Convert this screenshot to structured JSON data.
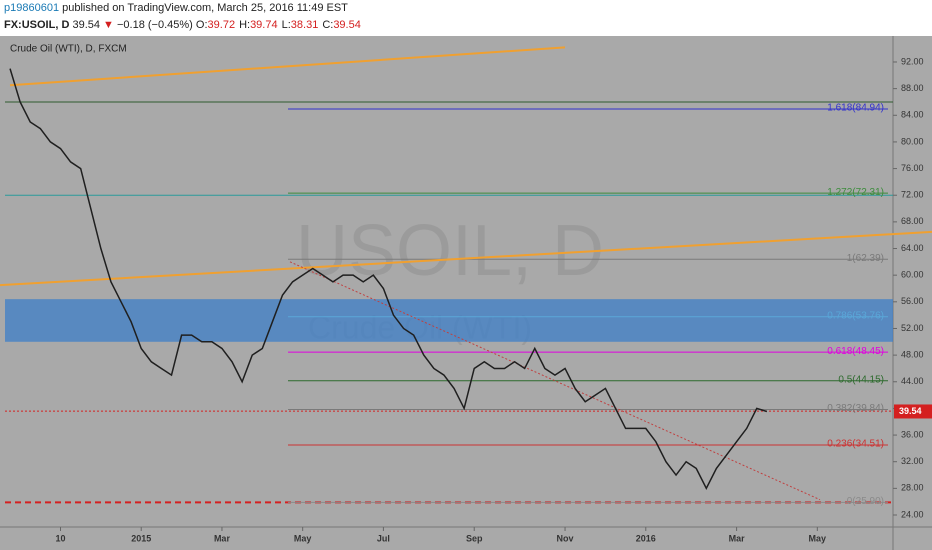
{
  "header": {
    "user": "p19860601",
    "published": "published on TradingView.com, March 25, 2016 11:49 EST",
    "symbol": "FX:USOIL, D",
    "price": "39.54",
    "change": "−0.18 (−0.45%)",
    "ohlc": [
      {
        "label": "O:",
        "value": "39.72"
      },
      {
        "label": "H:",
        "value": "39.74"
      },
      {
        "label": "L:",
        "value": "38.31"
      },
      {
        "label": "C:",
        "value": "39.54"
      }
    ]
  },
  "chart_data": {
    "type": "line",
    "title": "Crude Oil (WTI), D, FXCM",
    "watermark": "USOIL, D",
    "watermark_sub": "Crude Oil (WTI)",
    "color": "#1f1f1f",
    "categories": [
      null,
      null,
      null,
      null,
      null,
      "10",
      null,
      null,
      null,
      null,
      null,
      null,
      null,
      "2015",
      null,
      null,
      null,
      null,
      null,
      null,
      null,
      "Mar",
      null,
      null,
      null,
      null,
      null,
      null,
      null,
      "May",
      null,
      null,
      null,
      null,
      null,
      null,
      null,
      "Jul",
      null,
      null,
      null,
      null,
      null,
      null,
      null,
      null,
      "Sep",
      null,
      null,
      null,
      null,
      null,
      null,
      null,
      null,
      "Nov",
      null,
      null,
      null,
      null,
      null,
      null,
      null,
      "2016",
      null,
      null,
      null,
      null,
      null,
      null,
      null,
      null,
      "Mar",
      null,
      null,
      null,
      null,
      null,
      null,
      null,
      "May",
      null,
      null,
      null,
      null,
      null,
      null,
      null
    ],
    "values": [
      91,
      86,
      83,
      82,
      80,
      79,
      77,
      76,
      70,
      64,
      59,
      56,
      53,
      49,
      47,
      46,
      45,
      51,
      51,
      50,
      50,
      49,
      47,
      44,
      48,
      49,
      53,
      57,
      59,
      60,
      61,
      60,
      59,
      60,
      60,
      59,
      60,
      58,
      54,
      52,
      51,
      48,
      46,
      45,
      43,
      40,
      46,
      47,
      46,
      46,
      47,
      46,
      49,
      46,
      45,
      46,
      43,
      41,
      42,
      43,
      40,
      37,
      37,
      37,
      35,
      32,
      30,
      32,
      31,
      28,
      31,
      33,
      35,
      37,
      40,
      39.54,
      null,
      null,
      null,
      null,
      null,
      null,
      null,
      null,
      null,
      null,
      null,
      null
    ],
    "ylim": [
      22.2,
      95.6
    ],
    "yticks": [
      {
        "value": 24,
        "label": "24.00"
      },
      {
        "value": 28,
        "label": "28.00"
      },
      {
        "value": 32,
        "label": "32.00"
      },
      {
        "value": 36,
        "label": "36.00"
      },
      {
        "value": 40,
        "label": "40.00"
      },
      {
        "value": 44,
        "label": "44.00"
      },
      {
        "value": 48,
        "label": "48.00"
      },
      {
        "value": 52,
        "label": "52.00"
      },
      {
        "value": 56,
        "label": "56.00"
      },
      {
        "value": 60,
        "label": "60.00"
      },
      {
        "value": 64,
        "label": "64.00"
      },
      {
        "value": 68,
        "label": "68.00"
      },
      {
        "value": 72,
        "label": "72.00"
      },
      {
        "value": 76,
        "label": "76.00"
      },
      {
        "value": 80,
        "label": "80.00"
      },
      {
        "value": 84,
        "label": "84.00"
      },
      {
        "value": 88,
        "label": "88.00"
      },
      {
        "value": 92,
        "label": "92.00"
      }
    ],
    "last_price": {
      "value": 39.54,
      "label": "39.54"
    },
    "fib_levels": [
      {
        "value": 84.94,
        "label": "1.618(84.94)",
        "color": "#3333cc"
      },
      {
        "value": 72.31,
        "label": "1.272(72.31)",
        "color": "#3c8c3c"
      },
      {
        "value": 62.39,
        "label": "1(62.39)",
        "color": "#7a7a7a"
      },
      {
        "value": 53.76,
        "label": "0.786(53.76)",
        "color": "#5aa7d8"
      },
      {
        "value": 48.45,
        "label": "0.618(48.45)",
        "color": "#e000e0"
      },
      {
        "value": 44.15,
        "label": "0.5(44.15)",
        "color": "#2e6b2e"
      },
      {
        "value": 39.84,
        "label": "0.382(39.84)",
        "color": "#7a7a7a"
      },
      {
        "value": 34.51,
        "label": "0.236(34.51)",
        "color": "#cc3333"
      },
      {
        "value": 25.9,
        "label": "0(25.90)",
        "color": "#8a8a8a"
      }
    ],
    "zone": {
      "values": [
        50,
        56.4
      ],
      "color": "#3d7fc8"
    },
    "hlines": [
      {
        "value": 86,
        "color": "#2e5a2e",
        "dash": "none"
      },
      {
        "value": 72,
        "color": "#2a9a9a",
        "dash": "none"
      },
      {
        "value": 39.6,
        "color": "#d42020",
        "dash": "2,2"
      },
      {
        "value": 25.9,
        "color": "#d42020",
        "dash": "6,4"
      }
    ],
    "trendlines": [
      {
        "values": [
          88.5,
          94.2
        ],
        "color": "#f0a030"
      },
      {
        "values": [
          58.5,
          66.5
        ],
        "color": "#f0a030"
      },
      {
        "values": [
          62,
          26.3
        ],
        "color": "#c04040"
      }
    ]
  }
}
